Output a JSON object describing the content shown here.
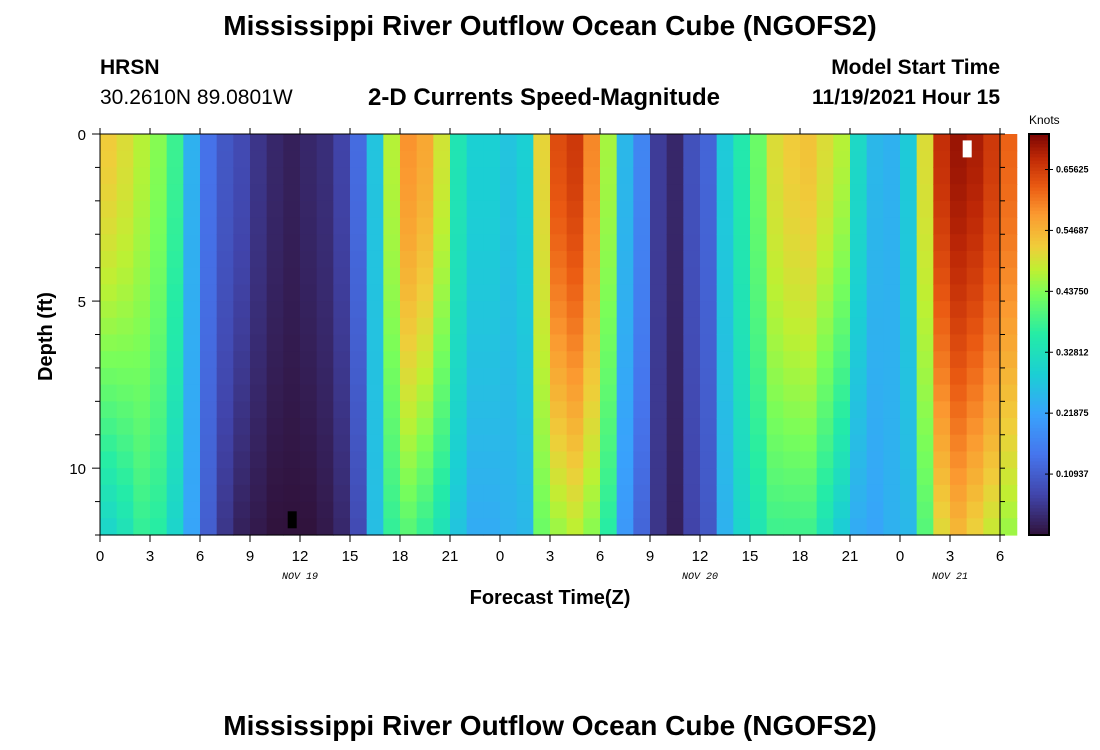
{
  "page": {
    "title_top": "Mississippi River Outflow Ocean Cube (NGOFS2)",
    "title_bottom": "Mississippi River Outflow Ocean Cube (NGOFS2)",
    "station_name": "HRSN",
    "station_coords": "30.2610N  89.0801W",
    "subtitle": "2-D Currents Speed-Magnitude",
    "model_start_label": "Model Start Time",
    "model_start_value": "11/19/2021 Hour 15"
  },
  "chart_data": {
    "type": "heatmap",
    "xlabel": "Forecast Time(Z)",
    "ylabel": "Depth (ft)",
    "x_tick_labels": [
      "0",
      "3",
      "6",
      "9",
      "12",
      "15",
      "18",
      "21",
      "0",
      "3",
      "6",
      "9",
      "12",
      "15",
      "18",
      "21",
      "0",
      "3",
      "6"
    ],
    "x_range_hours": [
      0,
      54
    ],
    "y_range_ft": [
      0,
      12
    ],
    "y_tick_labels": [
      "0",
      "5",
      "10"
    ],
    "y_tick_values": [
      0,
      5,
      10
    ],
    "date_labels": [
      {
        "text": "NOV 19",
        "hour": 12
      },
      {
        "text": "NOV 20",
        "hour": 36
      },
      {
        "text": "NOV 21",
        "hour": 51
      }
    ],
    "colorbar": {
      "units": "Knots",
      "min": 0.0,
      "max": 0.72,
      "tick_values": [
        0.65625,
        0.546875,
        0.4375,
        0.328125,
        0.21875,
        0.109375
      ],
      "tick_labels": [
        "0.65625",
        "0.54687",
        "0.43750",
        "0.32812",
        "0.21875",
        "0.10937"
      ]
    },
    "surface_speed_by_hour": [
      0.52,
      0.5,
      0.47,
      0.44,
      0.38,
      0.24,
      0.14,
      0.1,
      0.08,
      0.05,
      0.03,
      0.02,
      0.03,
      0.04,
      0.07,
      0.13,
      0.27,
      0.47,
      0.58,
      0.56,
      0.49,
      0.34,
      0.29,
      0.29,
      0.27,
      0.29,
      0.51,
      0.64,
      0.66,
      0.59,
      0.46,
      0.25,
      0.17,
      0.06,
      0.03,
      0.09,
      0.12,
      0.28,
      0.35,
      0.42,
      0.5,
      0.52,
      0.53,
      0.5,
      0.47,
      0.31,
      0.25,
      0.24,
      0.28,
      0.5,
      0.67,
      0.7,
      0.69,
      0.66,
      0.62
    ],
    "bottom_speed_by_hour": [
      0.3,
      0.33,
      0.37,
      0.36,
      0.3,
      0.22,
      0.11,
      0.05,
      0.02,
      0.01,
      0.0,
      0.0,
      0.0,
      0.01,
      0.03,
      0.08,
      0.26,
      0.37,
      0.4,
      0.37,
      0.33,
      0.27,
      0.23,
      0.23,
      0.24,
      0.25,
      0.42,
      0.45,
      0.47,
      0.44,
      0.36,
      0.2,
      0.12,
      0.05,
      0.02,
      0.07,
      0.1,
      0.24,
      0.3,
      0.34,
      0.38,
      0.38,
      0.38,
      0.33,
      0.28,
      0.23,
      0.22,
      0.24,
      0.25,
      0.4,
      0.5,
      0.54,
      0.51,
      0.48,
      0.45
    ],
    "markers": [
      {
        "hour": 11.5,
        "depth_ft": 11.5,
        "color": "#000000"
      },
      {
        "hour": 52.0,
        "depth_ft": 0.4,
        "color": "#ffffff"
      }
    ]
  }
}
